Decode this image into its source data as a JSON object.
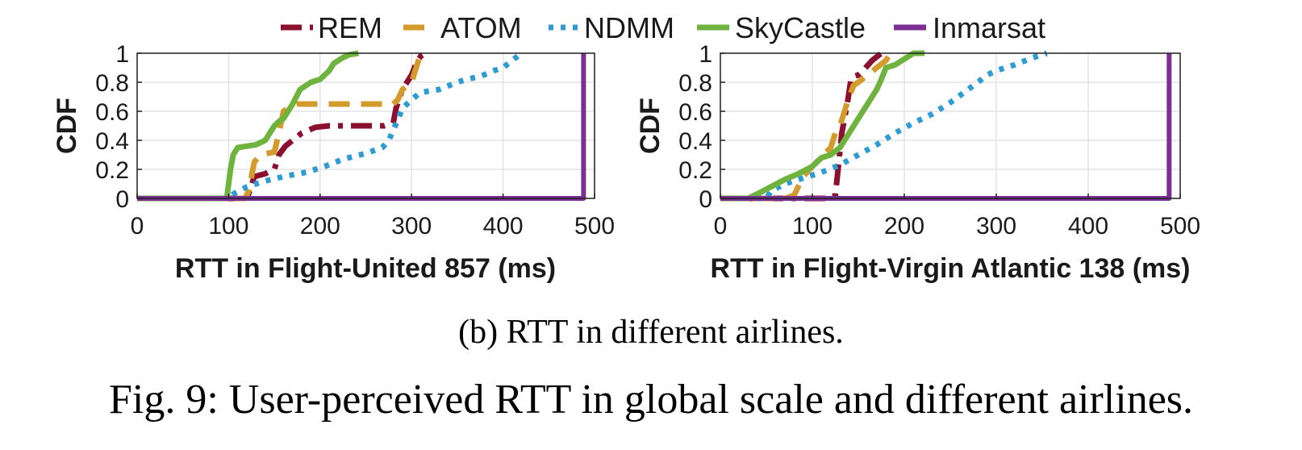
{
  "legend": [
    {
      "name": "REM",
      "color": "#8b0f2f",
      "dash": "dashdot"
    },
    {
      "name": "ATOM",
      "color": "#d39a2c",
      "dash": "dash"
    },
    {
      "name": "NDMM",
      "color": "#2f9bd3",
      "dash": "dot"
    },
    {
      "name": "SkyCastle",
      "color": "#6fb33f",
      "dash": "solid"
    },
    {
      "name": "Inmarsat",
      "color": "#7b2f92",
      "dash": "solid"
    }
  ],
  "subcaption": "(b) RTT in different airlines.",
  "caption": "Fig. 9: User-perceived RTT in global scale and different airlines.",
  "chart_data": [
    {
      "type": "line",
      "title": "",
      "xlabel": "RTT in Flight-United 857 (ms)",
      "ylabel": "CDF",
      "xlim": [
        0,
        500
      ],
      "ylim": [
        0,
        1
      ],
      "xticks": [
        "0",
        "100",
        "200",
        "300",
        "400",
        "500"
      ],
      "yticks": [
        "0",
        "0.2",
        "0.4",
        "0.6",
        "0.8",
        "1"
      ],
      "grid": true,
      "series": [
        {
          "name": "REM",
          "x": [
            0,
            120,
            123,
            128,
            140,
            150,
            155,
            162,
            170,
            180,
            195,
            210,
            240,
            270,
            280,
            283,
            290,
            300,
            305,
            310,
            315
          ],
          "y": [
            0,
            0,
            0.05,
            0.15,
            0.17,
            0.2,
            0.3,
            0.36,
            0.4,
            0.45,
            0.49,
            0.5,
            0.5,
            0.5,
            0.52,
            0.62,
            0.75,
            0.85,
            0.93,
            0.98,
            1
          ]
        },
        {
          "name": "ATOM",
          "x": [
            0,
            118,
            122,
            128,
            135,
            150,
            155,
            160,
            170,
            175,
            240,
            280,
            285,
            290,
            300,
            305,
            310
          ],
          "y": [
            0,
            0,
            0.05,
            0.25,
            0.3,
            0.32,
            0.45,
            0.6,
            0.64,
            0.65,
            0.65,
            0.65,
            0.68,
            0.75,
            0.8,
            0.9,
            1
          ]
        },
        {
          "name": "NDMM",
          "x": [
            0,
            100,
            105,
            120,
            140,
            160,
            185,
            205,
            225,
            250,
            268,
            275,
            282,
            290,
            300,
            310,
            330,
            350,
            360,
            375,
            390,
            400,
            410,
            420
          ],
          "y": [
            0,
            0,
            0.03,
            0.08,
            0.12,
            0.15,
            0.18,
            0.22,
            0.27,
            0.31,
            0.35,
            0.4,
            0.5,
            0.62,
            0.68,
            0.73,
            0.75,
            0.8,
            0.82,
            0.84,
            0.88,
            0.9,
            0.95,
            1
          ]
        },
        {
          "name": "SkyCastle",
          "x": [
            0,
            98,
            100,
            102,
            105,
            110,
            130,
            140,
            150,
            155,
            160,
            165,
            170,
            178,
            190,
            200,
            210,
            215,
            225,
            232,
            242
          ],
          "y": [
            0,
            0,
            0.1,
            0.2,
            0.3,
            0.35,
            0.37,
            0.4,
            0.5,
            0.53,
            0.55,
            0.6,
            0.65,
            0.75,
            0.8,
            0.82,
            0.88,
            0.93,
            0.97,
            0.99,
            1
          ]
        },
        {
          "name": "Inmarsat",
          "x": [
            0,
            488,
            488
          ],
          "y": [
            0,
            0,
            1
          ]
        }
      ]
    },
    {
      "type": "line",
      "title": "",
      "xlabel": "RTT in Flight-Virgin Atlantic 138 (ms)",
      "ylabel": "CDF",
      "xlim": [
        0,
        500
      ],
      "ylim": [
        0,
        1
      ],
      "xticks": [
        "0",
        "100",
        "200",
        "300",
        "400",
        "500"
      ],
      "yticks": [
        "0",
        "0.2",
        "0.4",
        "0.6",
        "0.8",
        "1"
      ],
      "grid": true,
      "series": [
        {
          "name": "REM",
          "x": [
            0,
            118,
            125,
            128,
            132,
            138,
            142,
            145,
            150,
            155,
            165,
            175
          ],
          "y": [
            0,
            0,
            0.02,
            0.2,
            0.45,
            0.65,
            0.82,
            0.84,
            0.85,
            0.88,
            0.95,
            1
          ]
        },
        {
          "name": "ATOM",
          "x": [
            0,
            70,
            80,
            90,
            100,
            112,
            120,
            125,
            130,
            135,
            140,
            145,
            150,
            160,
            170,
            180,
            185
          ],
          "y": [
            0,
            0,
            0.02,
            0.15,
            0.22,
            0.3,
            0.35,
            0.45,
            0.5,
            0.6,
            0.7,
            0.78,
            0.8,
            0.85,
            0.9,
            0.95,
            1
          ]
        },
        {
          "name": "NDMM",
          "x": [
            0,
            50,
            55,
            70,
            90,
            110,
            130,
            150,
            170,
            190,
            210,
            230,
            250,
            265,
            280,
            290,
            300,
            320,
            340,
            355
          ],
          "y": [
            0,
            0,
            0.05,
            0.1,
            0.14,
            0.18,
            0.23,
            0.3,
            0.37,
            0.45,
            0.52,
            0.58,
            0.66,
            0.73,
            0.8,
            0.85,
            0.88,
            0.92,
            0.97,
            1
          ]
        },
        {
          "name": "SkyCastle",
          "x": [
            0,
            30,
            40,
            55,
            70,
            85,
            100,
            110,
            120,
            130,
            140,
            150,
            160,
            170,
            175,
            180,
            190,
            200,
            210,
            222
          ],
          "y": [
            0,
            0,
            0.03,
            0.08,
            0.13,
            0.17,
            0.22,
            0.28,
            0.3,
            0.35,
            0.45,
            0.55,
            0.65,
            0.75,
            0.82,
            0.9,
            0.92,
            0.96,
            1,
            1
          ]
        },
        {
          "name": "Inmarsat",
          "x": [
            0,
            488,
            488
          ],
          "y": [
            0,
            0,
            1
          ]
        }
      ]
    }
  ]
}
